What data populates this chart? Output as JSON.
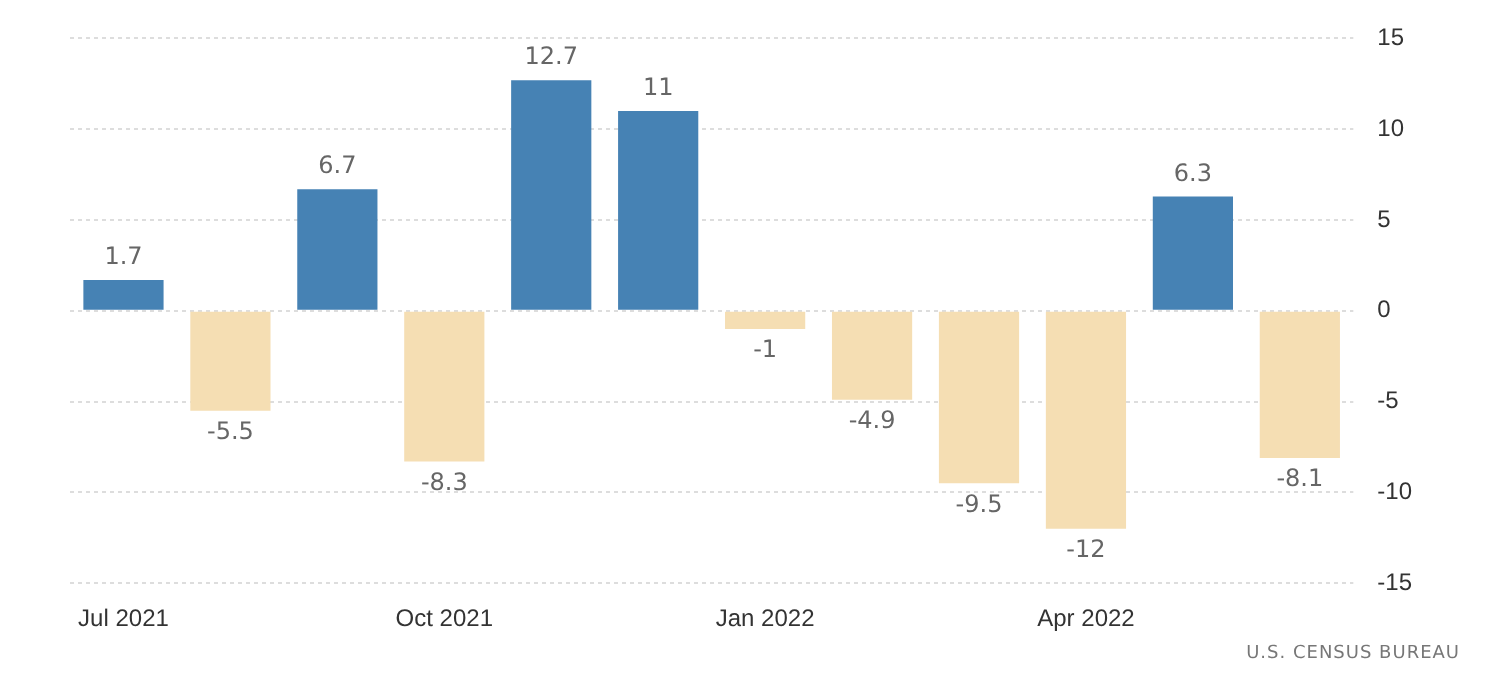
{
  "chart_data": {
    "type": "bar",
    "categories": [
      "Jul 2021",
      null,
      null,
      "Oct 2021",
      null,
      null,
      "Jan 2022",
      null,
      null,
      "Apr 2022",
      null,
      null
    ],
    "values": [
      1.7,
      -5.5,
      6.7,
      -8.3,
      12.7,
      11,
      -1,
      -4.9,
      -9.5,
      -12,
      6.3,
      -8.1
    ],
    "colors": [
      "#4682b4",
      "#f5deb3",
      "#4682b4",
      "#f5deb3",
      "#4682b4",
      "#4682b4",
      "#f5deb3",
      "#f5deb3",
      "#f5deb3",
      "#f5deb3",
      "#4682b4",
      "#f5deb3"
    ],
    "ylim": [
      -15,
      15
    ],
    "yticks": [
      -15,
      -10,
      -5,
      0,
      5,
      10,
      15
    ],
    "grid": "y",
    "legend": false,
    "data_labels": true,
    "annotations": [
      "U.S. CENSUS BUREAU"
    ]
  }
}
